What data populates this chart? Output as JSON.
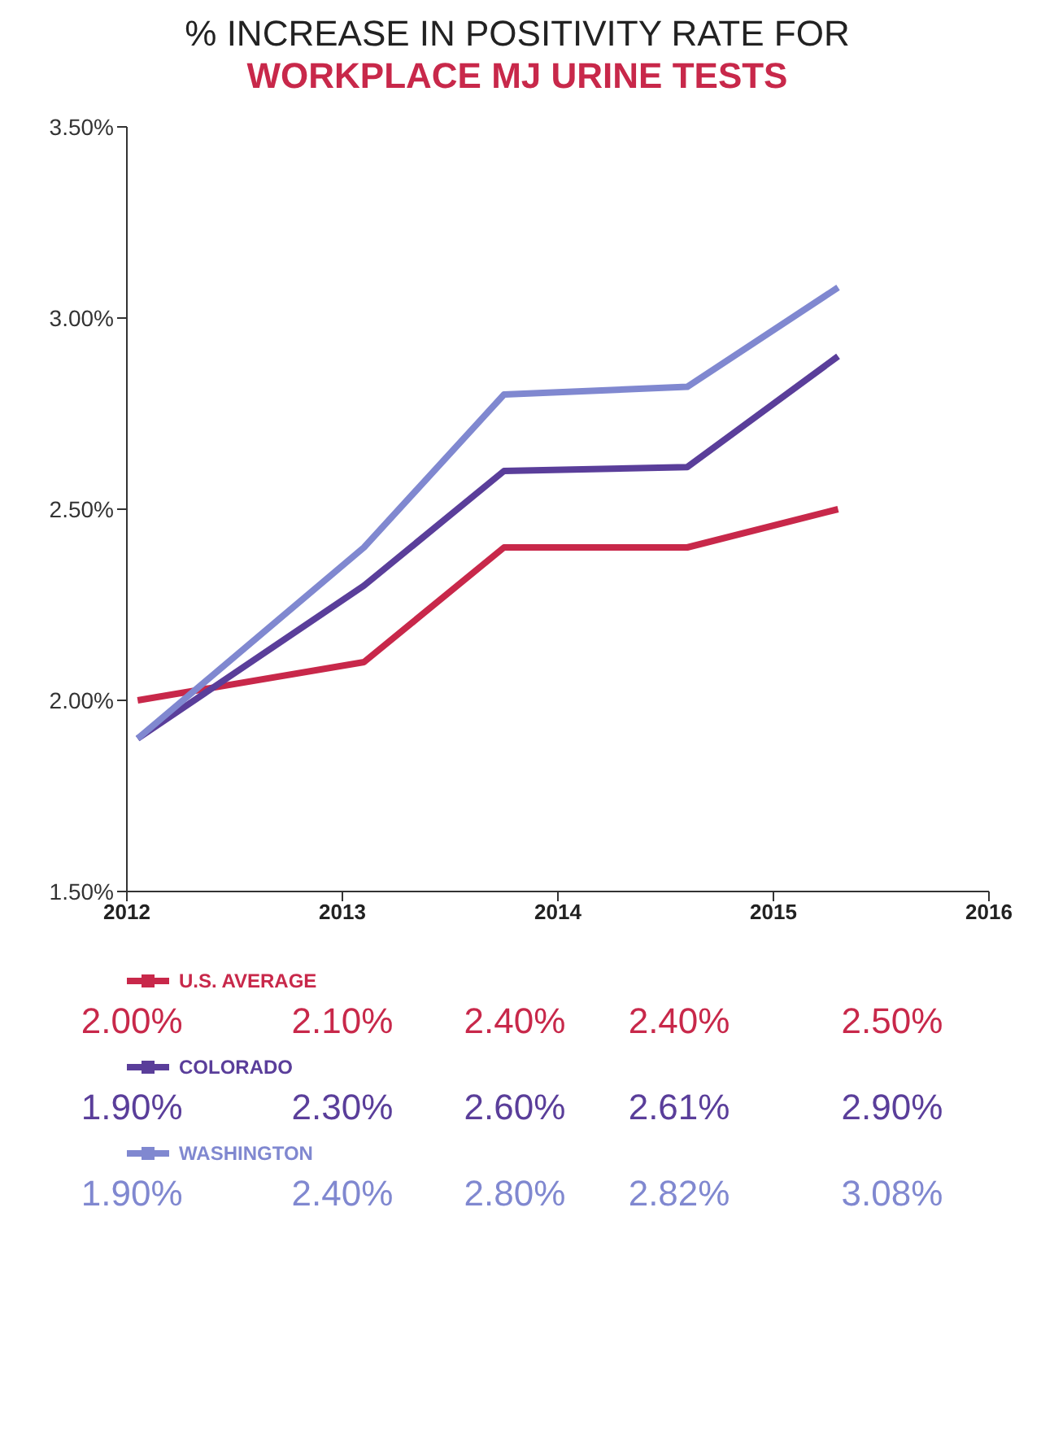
{
  "chart_data": {
    "type": "line",
    "title": "% INCREASE IN POSITIVITY RATE FOR",
    "subtitle": "WORKPLACE MJ URINE TESTS",
    "x": [
      2012.05,
      2013.1,
      2013.75,
      2014.6,
      2015.3
    ],
    "series": [
      {
        "name": "U.S. AVERAGE",
        "color": "#c8284a",
        "values": [
          2.0,
          2.1,
          2.4,
          2.4,
          2.5
        ]
      },
      {
        "name": "COLORADO",
        "color": "#5a3e9a",
        "values": [
          1.9,
          2.3,
          2.6,
          2.61,
          2.9
        ]
      },
      {
        "name": "WASHINGTON",
        "color": "#8088d0",
        "values": [
          1.9,
          2.4,
          2.8,
          2.82,
          3.08
        ]
      }
    ],
    "annotations": [
      "2.00%",
      "2.10%",
      "2.40%",
      "2.40%",
      "2.50%",
      "1.90%",
      "2.30%",
      "2.60%",
      "2.61%",
      "2.90%",
      "1.90%",
      "2.40%",
      "2.80%",
      "2.82%",
      "3.08%"
    ],
    "xlim": [
      2012,
      2016
    ],
    "xticks": [
      2012,
      2013,
      2014,
      2015,
      2016
    ],
    "ylim": [
      1.5,
      3.5
    ],
    "yticks": [
      {
        "value": 1.5,
        "label": "1.50%"
      },
      {
        "value": 2,
        "label": "2.00%"
      },
      {
        "value": 2.5,
        "label": "2.50%"
      },
      {
        "value": 3,
        "label": "3.00%"
      },
      {
        "value": 3.5,
        "label": "3.50%"
      }
    ],
    "grid": false,
    "legend": "bottom",
    "marker": "none",
    "line_style": "solid"
  }
}
